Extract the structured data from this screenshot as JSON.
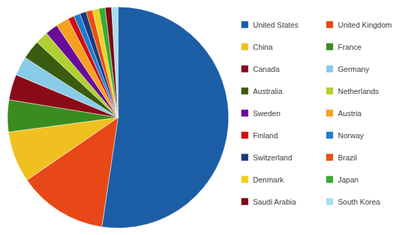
{
  "chart_data": {
    "type": "pie",
    "categories": [
      "United States",
      "United Kingdom",
      "China",
      "France",
      "Canada",
      "Germany",
      "Australia",
      "Netherlands",
      "Sweden",
      "Austria",
      "Finland",
      "Norway",
      "Switzerland",
      "Brazil",
      "Denmark",
      "Japan",
      "Saudi Arabia",
      "South Korea"
    ],
    "values": [
      56,
      14,
      8,
      5,
      4,
      3,
      3,
      2,
      2,
      2,
      1,
      1,
      1,
      1,
      1,
      1,
      1,
      1
    ],
    "colors": [
      "#1b5ea6",
      "#e84818",
      "#f0c020",
      "#3a8c20",
      "#8b0a18",
      "#88cce8",
      "#3a5c10",
      "#b0d030",
      "#6a0c9a",
      "#f5a020",
      "#d01010",
      "#1e7cd0",
      "#1a3a80",
      "#e85010",
      "#f0d020",
      "#3aaa30",
      "#7a0a18",
      "#a8ddf0"
    ],
    "legend": "right"
  }
}
